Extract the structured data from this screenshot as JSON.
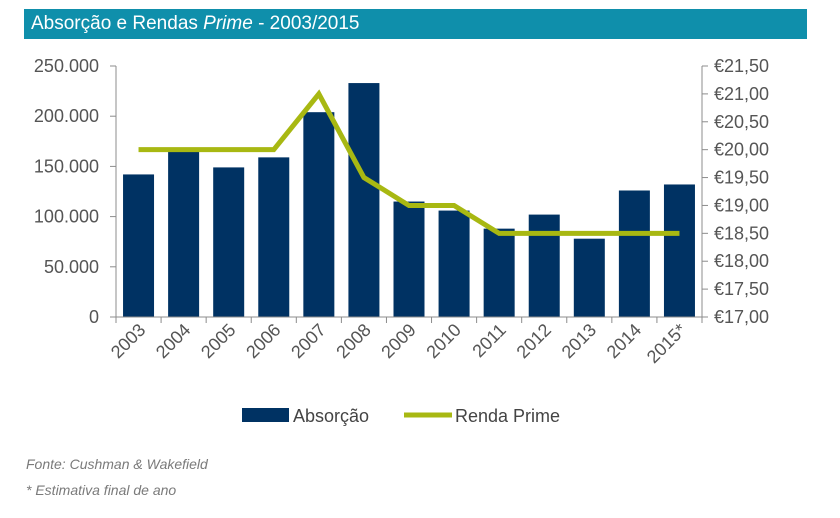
{
  "title": {
    "main": "Absorção e Rendas ",
    "italic": "Prime",
    "suffix": " - 2003/2015"
  },
  "colors": {
    "title_bg": "#0f8fab",
    "bar": "#003263",
    "line": "#a8b812"
  },
  "chart_data": {
    "type": "bar",
    "title": "Absorção e Rendas Prime - 2003/2015",
    "categories": [
      "2003",
      "2004",
      "2005",
      "2006",
      "2007",
      "2008",
      "2009",
      "2010",
      "2011",
      "2012",
      "2013",
      "2014",
      "2015*"
    ],
    "series": [
      {
        "name": "Absorção",
        "type": "bar",
        "axis": "left",
        "values": [
          142000,
          165000,
          149000,
          159000,
          204000,
          233000,
          115000,
          106000,
          88000,
          102000,
          78000,
          126000,
          132000
        ]
      },
      {
        "name": "Renda Prime",
        "type": "line",
        "axis": "right",
        "values": [
          20.0,
          20.0,
          20.0,
          20.0,
          21.0,
          19.5,
          19.0,
          19.0,
          18.5,
          18.5,
          18.5,
          18.5,
          18.5
        ]
      }
    ],
    "y_left": {
      "ylim": [
        0,
        250000
      ],
      "ticks": [
        "0",
        "50.000",
        "100.000",
        "150.000",
        "200.000",
        "250.000"
      ]
    },
    "y_right": {
      "ylim": [
        17.0,
        21.5
      ],
      "ticks": [
        "€17,00",
        "€17,50",
        "€18,00",
        "€18,50",
        "€19,00",
        "€19,50",
        "€20,00",
        "€20,50",
        "€21,00",
        "€21,50"
      ]
    },
    "grid": false,
    "legend": "bottom"
  },
  "footnotes": {
    "source": "Fonte: Cushman & Wakefield",
    "note": "* Estimativa final de ano"
  }
}
